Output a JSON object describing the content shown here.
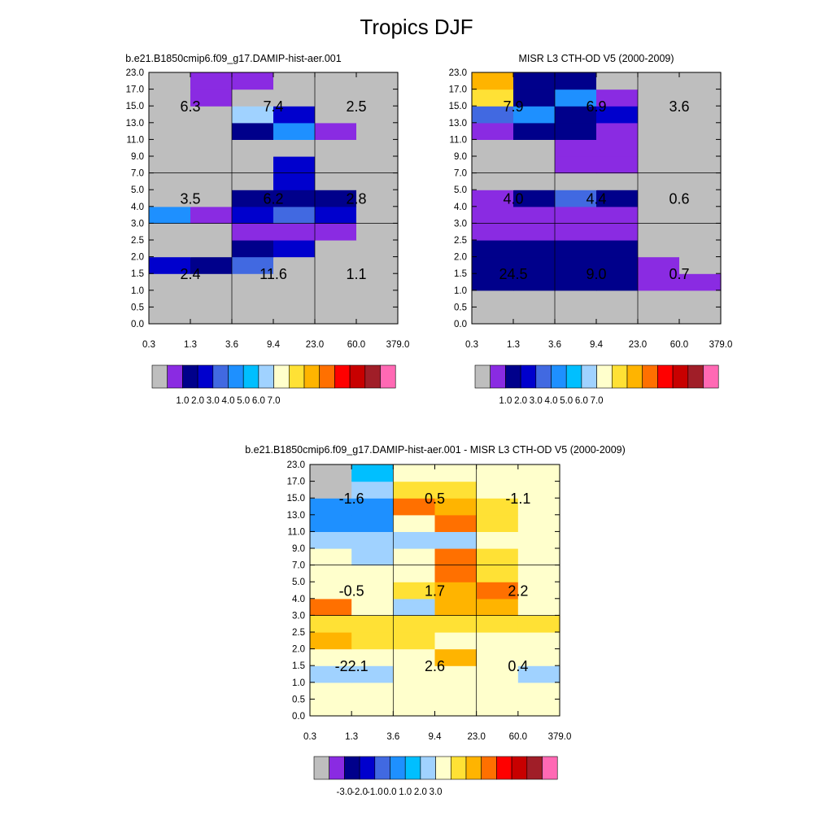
{
  "figure": {
    "title": "Tropics DJF"
  },
  "chart_data": [
    {
      "type": "heatmap",
      "title": "b.e21.B1850cmip6.f09_g17.DAMIP-hist-aer.001",
      "x_ticks": [
        "0.3",
        "1.3",
        "3.6",
        "9.4",
        "23.0",
        "60.0",
        "379.0"
      ],
      "y_ticks": [
        "0.0",
        "0.5",
        "1.0",
        "1.5",
        "2.0",
        "2.5",
        "3.0",
        "4.0",
        "5.0",
        "7.0",
        "9.0",
        "11.0",
        "13.0",
        "15.0",
        "17.0",
        "23.0"
      ],
      "colorbar_labels": [
        "1.0",
        "2.0",
        "3.0",
        "4.0",
        "5.0",
        "6.0",
        "7.0"
      ],
      "grid": [
        [
          0,
          0,
          0,
          0,
          0,
          0
        ],
        [
          0,
          0,
          0,
          0,
          0,
          0
        ],
        [
          0,
          0,
          0,
          0,
          0,
          0
        ],
        [
          3,
          2,
          4,
          0,
          0,
          0
        ],
        [
          0,
          0,
          2,
          3,
          0,
          0
        ],
        [
          0,
          0,
          1,
          1,
          1,
          0
        ],
        [
          5,
          1,
          3,
          4,
          3,
          0
        ],
        [
          0,
          0,
          2,
          2,
          2,
          0
        ],
        [
          0,
          0,
          0,
          3,
          0,
          0
        ],
        [
          0,
          0,
          0,
          3,
          0,
          0
        ],
        [
          0,
          0,
          0,
          0,
          0,
          0
        ],
        [
          0,
          0,
          2,
          5,
          1,
          0
        ],
        [
          0,
          0,
          7,
          3,
          0,
          0
        ],
        [
          0,
          1,
          0,
          0,
          0,
          0
        ],
        [
          0,
          1,
          1,
          0,
          0,
          0
        ]
      ],
      "values": [
        [
          "6.3",
          "7.4",
          "2.5"
        ],
        [
          "3.5",
          "6.2",
          "2.8"
        ],
        [
          "2.4",
          "11.6",
          "1.1"
        ]
      ]
    },
    {
      "type": "heatmap",
      "title": "MISR L3 CTH-OD V5 (2000-2009)",
      "x_ticks": [
        "0.3",
        "1.3",
        "3.6",
        "9.4",
        "23.0",
        "60.0",
        "379.0"
      ],
      "y_ticks": [
        "0.0",
        "0.5",
        "1.0",
        "1.5",
        "2.0",
        "2.5",
        "3.0",
        "4.0",
        "5.0",
        "7.0",
        "9.0",
        "11.0",
        "13.0",
        "15.0",
        "17.0",
        "23.0"
      ],
      "colorbar_labels": [
        "1.0",
        "2.0",
        "3.0",
        "4.0",
        "5.0",
        "6.0",
        "7.0"
      ],
      "grid": [
        [
          0,
          0,
          0,
          0,
          0,
          0
        ],
        [
          0,
          0,
          0,
          0,
          0,
          0
        ],
        [
          2,
          2,
          2,
          2,
          1,
          1
        ],
        [
          2,
          2,
          2,
          2,
          1,
          0
        ],
        [
          2,
          2,
          2,
          2,
          0,
          0
        ],
        [
          1,
          1,
          1,
          1,
          0,
          0
        ],
        [
          1,
          1,
          1,
          1,
          0,
          0
        ],
        [
          1,
          2,
          4,
          2,
          0,
          0
        ],
        [
          0,
          0,
          0,
          0,
          0,
          0
        ],
        [
          0,
          0,
          1,
          1,
          0,
          0
        ],
        [
          0,
          0,
          1,
          1,
          0,
          0
        ],
        [
          1,
          2,
          2,
          1,
          0,
          0
        ],
        [
          4,
          5,
          2,
          3,
          0,
          0
        ],
        [
          9,
          2,
          5,
          1,
          0,
          0
        ],
        [
          10,
          2,
          2,
          0,
          0,
          0
        ]
      ],
      "values": [
        [
          "7.9",
          "6.9",
          "3.6"
        ],
        [
          "4.0",
          "4.4",
          "0.6"
        ],
        [
          "24.5",
          "9.0",
          "0.7"
        ]
      ]
    },
    {
      "type": "heatmap",
      "title": "b.e21.B1850cmip6.f09_g17.DAMIP-hist-aer.001 - MISR L3 CTH-OD V5 (2000-2009)",
      "x_ticks": [
        "0.3",
        "1.3",
        "3.6",
        "9.4",
        "23.0",
        "60.0",
        "379.0"
      ],
      "y_ticks": [
        "0.0",
        "0.5",
        "1.0",
        "1.5",
        "2.0",
        "2.5",
        "3.0",
        "4.0",
        "5.0",
        "7.0",
        "9.0",
        "11.0",
        "13.0",
        "15.0",
        "17.0",
        "23.0"
      ],
      "colorbar_labels": [
        "-3.0",
        "-2.0",
        "-1.0",
        "0.0",
        "1.0",
        "2.0",
        "3.0"
      ],
      "grid": [
        [
          8,
          8,
          8,
          8,
          8,
          8
        ],
        [
          8,
          8,
          8,
          8,
          8,
          8
        ],
        [
          7,
          7,
          8,
          8,
          8,
          7
        ],
        [
          8,
          8,
          8,
          10,
          8,
          8
        ],
        [
          10,
          9,
          9,
          8,
          8,
          8
        ],
        [
          9,
          9,
          9,
          9,
          9,
          9
        ],
        [
          11,
          8,
          7,
          10,
          10,
          8
        ],
        [
          8,
          8,
          9,
          10,
          11,
          8
        ],
        [
          8,
          8,
          8,
          11,
          9,
          8
        ],
        [
          8,
          7,
          8,
          11,
          9,
          8
        ],
        [
          7,
          7,
          7,
          7,
          8,
          8
        ],
        [
          5,
          5,
          8,
          11,
          9,
          8
        ],
        [
          5,
          5,
          11,
          10,
          9,
          8
        ],
        [
          0,
          7,
          9,
          9,
          8,
          8
        ],
        [
          0,
          6,
          8,
          8,
          8,
          8
        ]
      ],
      "values": [
        [
          "-1.6",
          "0.5",
          "-1.1"
        ],
        [
          "-0.5",
          "1.7",
          "2.2"
        ],
        [
          "-22.1",
          "2.6",
          "0.4"
        ]
      ]
    }
  ],
  "palettes": {
    "absolute": [
      "#bebebe",
      "#8a2be2",
      "#00008b",
      "#0000cd",
      "#4169e1",
      "#1e90ff",
      "#00bfff",
      "#a0d2ff",
      "#ffffcc",
      "#ffe135",
      "#ffb400",
      "#ff7000",
      "#ff0000",
      "#c80000",
      "#a01e28",
      "#ff69b4"
    ],
    "difference": [
      "#bebebe",
      "#8a2be2",
      "#00008b",
      "#0000cd",
      "#4169e1",
      "#1e90ff",
      "#00bfff",
      "#a0d2ff",
      "#ffffcc",
      "#ffe135",
      "#ffb400",
      "#ff7000",
      "#ff0000",
      "#c80000",
      "#a01e28",
      "#ff69b4"
    ]
  }
}
